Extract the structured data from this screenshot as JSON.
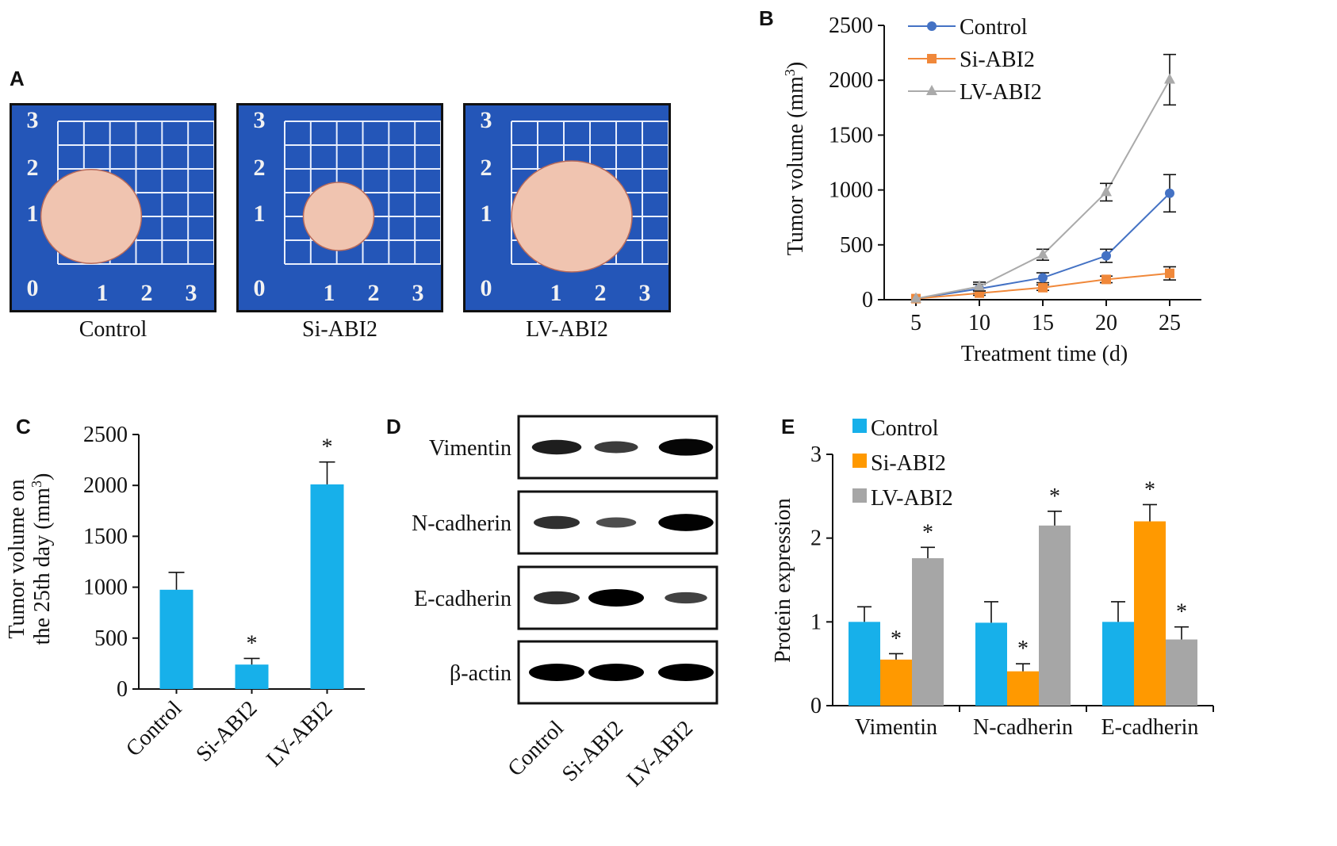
{
  "panels": {
    "A": "A",
    "B": "B",
    "C": "C",
    "D": "D",
    "E": "E"
  },
  "panelA": {
    "photos": [
      {
        "caption": "Control",
        "ruler_y": [
          "3",
          "2",
          "1",
          "0"
        ],
        "ruler_x": [
          "1",
          "2",
          "3"
        ],
        "tumor_size": 0.62
      },
      {
        "caption": "Si-ABI2",
        "ruler_y": [
          "3",
          "2",
          "1",
          "0"
        ],
        "ruler_x": [
          "1",
          "2",
          "3"
        ],
        "tumor_size": 0.35
      },
      {
        "caption": "LV-ABI2",
        "ruler_y": [
          "3",
          "2",
          "1",
          "0"
        ],
        "ruler_x": [
          "1",
          "2",
          "3"
        ],
        "tumor_size": 0.8
      }
    ],
    "colors": {
      "board": "#2456b8",
      "tumor": "#f0c4b0"
    }
  },
  "chart_data": [
    {
      "id": "B",
      "type": "line",
      "xlabel": "Treatment time (d)",
      "ylabel": "Tumor volume (mm",
      "ylabel_sup": "3",
      "ylabel_end": ")",
      "x": [
        5,
        10,
        15,
        20,
        25
      ],
      "xticks": [
        "5",
        "10",
        "15",
        "20",
        "25"
      ],
      "yticks": [
        "0",
        "500",
        "1000",
        "1500",
        "2000",
        "2500"
      ],
      "ylim": [
        0,
        2500
      ],
      "series": [
        {
          "name": "Control",
          "color": "#4472c4",
          "marker": "circle",
          "values": [
            10,
            100,
            200,
            400,
            970
          ],
          "errors": [
            10,
            40,
            45,
            60,
            170
          ]
        },
        {
          "name": "Si-ABI2",
          "color": "#f0883a",
          "marker": "square",
          "values": [
            10,
            60,
            110,
            185,
            240
          ],
          "errors": [
            10,
            20,
            25,
            30,
            60
          ]
        },
        {
          "name": "LV-ABI2",
          "color": "#aaaaaa",
          "marker": "triangle",
          "values": [
            10,
            120,
            410,
            980,
            2005
          ],
          "errors": [
            10,
            40,
            50,
            80,
            230
          ]
        }
      ],
      "legend": "top-left"
    },
    {
      "id": "C",
      "type": "bar",
      "ylabel_line1": "Tumor volume on",
      "ylabel_line2": "the 25th day (mm",
      "ylabel_sup": "3",
      "ylabel_end": ")",
      "categories": [
        "Control",
        "Si-ABI2",
        "LV-ABI2"
      ],
      "values": [
        975,
        240,
        2010
      ],
      "errors": [
        170,
        60,
        220
      ],
      "significance": [
        "",
        "*",
        "*"
      ],
      "yticks": [
        "0",
        "500",
        "1000",
        "1500",
        "2000",
        "2500"
      ],
      "ylim": [
        0,
        2500
      ],
      "color": "#17b0ea"
    },
    {
      "id": "E",
      "type": "bar",
      "ylabel": "Protein expression",
      "categories": [
        "Vimentin",
        "N-cadherin",
        "E-cadherin"
      ],
      "yticks": [
        "0",
        "1",
        "2",
        "3"
      ],
      "ylim": [
        0,
        3
      ],
      "series": [
        {
          "name": "Control",
          "color": "#17b0ea",
          "values": [
            1.0,
            0.99,
            1.0
          ],
          "errors": [
            0.18,
            0.25,
            0.24
          ],
          "significance": [
            "",
            "",
            ""
          ]
        },
        {
          "name": "Si-ABI2",
          "color": "#ff9900",
          "values": [
            0.55,
            0.41,
            2.2
          ],
          "errors": [
            0.07,
            0.09,
            0.2
          ],
          "significance": [
            "*",
            "*",
            "*"
          ]
        },
        {
          "name": "LV-ABI2",
          "color": "#a6a6a6",
          "values": [
            1.76,
            2.15,
            0.79
          ],
          "errors": [
            0.13,
            0.17,
            0.15
          ],
          "significance": [
            "*",
            "*",
            "*"
          ]
        }
      ],
      "legend": "top-left"
    }
  ],
  "panelD": {
    "bands": [
      {
        "label": "Vimentin",
        "intensity": [
          0.75,
          0.5,
          0.95
        ]
      },
      {
        "label": "N-cadherin",
        "intensity": [
          0.6,
          0.35,
          0.98
        ]
      },
      {
        "label": "E-cadherin",
        "intensity": [
          0.6,
          1.0,
          0.45
        ]
      },
      {
        "label": "β-actin",
        "intensity": [
          1.0,
          1.0,
          1.0
        ]
      }
    ],
    "lanes": [
      "Control",
      "Si-ABI2",
      "LV-ABI2"
    ]
  }
}
